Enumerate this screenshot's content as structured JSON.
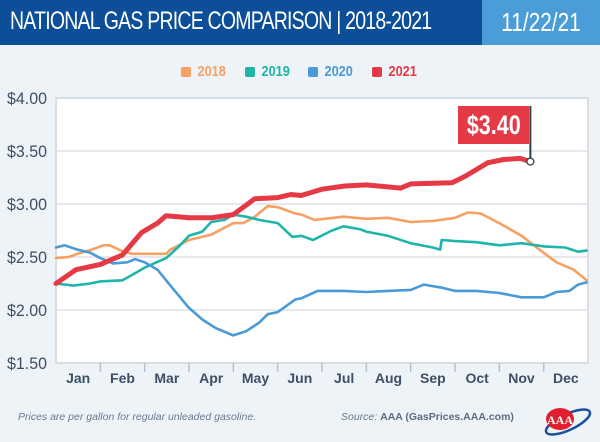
{
  "header": {
    "title": "NATIONAL GAS PRICE COMPARISON | 2018-2021",
    "date": "11/22/21"
  },
  "colors": {
    "header_bg": "#0c4f98",
    "date_bg": "#4b9dd8",
    "2018": "#f7a064",
    "2019": "#1fb5a9",
    "2020": "#4a9ad8",
    "2021": "#e63946"
  },
  "footer": {
    "note": "Prices are per gallon for regular unleaded gasoline.",
    "source_label": "Source:",
    "source_value": "AAA (GasPrices.AAA.com)",
    "logo": "AAA"
  },
  "chart_data": {
    "type": "line",
    "title": "NATIONAL GAS PRICE COMPARISON | 2018-2021",
    "ylim": [
      1.5,
      4.0
    ],
    "yticks": [
      "$1.50",
      "$2.00",
      "$2.50",
      "$3.00",
      "$3.50",
      "$4.00"
    ],
    "ytick_values": [
      1.5,
      2.0,
      2.5,
      3.0,
      3.5,
      4.0
    ],
    "categories": [
      "Jan",
      "Feb",
      "Mar",
      "Apr",
      "May",
      "Jun",
      "Jul",
      "Aug",
      "Sep",
      "Oct",
      "Nov",
      "Dec"
    ],
    "grid": "horizontal",
    "legend_placement": "top-center",
    "annotation": {
      "label": "$3.40",
      "series": "2021",
      "date": "11-22",
      "value": 3.4
    },
    "series": [
      {
        "name": "2018",
        "color": "#f7a064",
        "points": [
          [
            "01-01",
            2.49
          ],
          [
            "01-10",
            2.5
          ],
          [
            "01-16",
            2.53
          ],
          [
            "01-26",
            2.57
          ],
          [
            "02-03",
            2.61
          ],
          [
            "02-07",
            2.61
          ],
          [
            "02-14",
            2.56
          ],
          [
            "02-21",
            2.53
          ],
          [
            "03-01",
            2.53
          ],
          [
            "03-16",
            2.53
          ],
          [
            "03-19",
            2.57
          ],
          [
            "04-01",
            2.66
          ],
          [
            "04-16",
            2.71
          ],
          [
            "05-01",
            2.82
          ],
          [
            "05-08",
            2.82
          ],
          [
            "05-16",
            2.88
          ],
          [
            "05-25",
            2.98
          ],
          [
            "06-01",
            2.97
          ],
          [
            "06-13",
            2.91
          ],
          [
            "06-17",
            2.9
          ],
          [
            "06-26",
            2.85
          ],
          [
            "07-16",
            2.88
          ],
          [
            "08-01",
            2.86
          ],
          [
            "08-16",
            2.87
          ],
          [
            "09-01",
            2.83
          ],
          [
            "09-16",
            2.84
          ],
          [
            "10-01",
            2.87
          ],
          [
            "10-10",
            2.92
          ],
          [
            "10-19",
            2.91
          ],
          [
            "11-01",
            2.82
          ],
          [
            "11-16",
            2.7
          ],
          [
            "12-01",
            2.54
          ],
          [
            "12-10",
            2.45
          ],
          [
            "12-22",
            2.38
          ],
          [
            "12-31",
            2.28
          ]
        ]
      },
      {
        "name": "2019",
        "color": "#1fb5a9",
        "points": [
          [
            "01-01",
            2.25
          ],
          [
            "01-13",
            2.23
          ],
          [
            "01-25",
            2.25
          ],
          [
            "02-01",
            2.27
          ],
          [
            "02-15",
            2.28
          ],
          [
            "02-21",
            2.33
          ],
          [
            "03-01",
            2.4
          ],
          [
            "03-16",
            2.49
          ],
          [
            "03-25",
            2.6
          ],
          [
            "04-01",
            2.7
          ],
          [
            "04-10",
            2.74
          ],
          [
            "04-16",
            2.83
          ],
          [
            "04-25",
            2.85
          ],
          [
            "05-01",
            2.9
          ],
          [
            "05-10",
            2.88
          ],
          [
            "05-19",
            2.85
          ],
          [
            "06-01",
            2.82
          ],
          [
            "06-11",
            2.69
          ],
          [
            "06-17",
            2.7
          ],
          [
            "06-25",
            2.66
          ],
          [
            "07-08",
            2.75
          ],
          [
            "07-16",
            2.79
          ],
          [
            "07-28",
            2.76
          ],
          [
            "08-01",
            2.74
          ],
          [
            "08-16",
            2.7
          ],
          [
            "09-01",
            2.63
          ],
          [
            "09-16",
            2.59
          ],
          [
            "09-21",
            2.57
          ],
          [
            "09-22",
            2.66
          ],
          [
            "10-01",
            2.65
          ],
          [
            "10-16",
            2.64
          ],
          [
            "11-01",
            2.61
          ],
          [
            "11-16",
            2.63
          ],
          [
            "12-01",
            2.6
          ],
          [
            "12-16",
            2.59
          ],
          [
            "12-25",
            2.55
          ],
          [
            "12-31",
            2.56
          ]
        ]
      },
      {
        "name": "2020",
        "color": "#4a9ad8",
        "points": [
          [
            "01-01",
            2.59
          ],
          [
            "01-07",
            2.61
          ],
          [
            "01-16",
            2.57
          ],
          [
            "01-25",
            2.54
          ],
          [
            "02-01",
            2.49
          ],
          [
            "02-09",
            2.44
          ],
          [
            "02-18",
            2.45
          ],
          [
            "02-23",
            2.48
          ],
          [
            "03-01",
            2.45
          ],
          [
            "03-10",
            2.38
          ],
          [
            "03-19",
            2.23
          ],
          [
            "04-01",
            2.02
          ],
          [
            "04-10",
            1.91
          ],
          [
            "04-19",
            1.83
          ],
          [
            "05-01",
            1.76
          ],
          [
            "05-10",
            1.8
          ],
          [
            "05-19",
            1.88
          ],
          [
            "05-25",
            1.96
          ],
          [
            "06-01",
            1.98
          ],
          [
            "06-07",
            2.04
          ],
          [
            "06-13",
            2.1
          ],
          [
            "06-17",
            2.11
          ],
          [
            "06-28",
            2.18
          ],
          [
            "07-16",
            2.18
          ],
          [
            "08-01",
            2.17
          ],
          [
            "08-16",
            2.18
          ],
          [
            "09-01",
            2.19
          ],
          [
            "09-10",
            2.24
          ],
          [
            "09-22",
            2.21
          ],
          [
            "10-01",
            2.18
          ],
          [
            "10-16",
            2.18
          ],
          [
            "11-01",
            2.16
          ],
          [
            "11-16",
            2.12
          ],
          [
            "12-01",
            2.12
          ],
          [
            "12-10",
            2.17
          ],
          [
            "12-19",
            2.18
          ],
          [
            "12-25",
            2.24
          ],
          [
            "12-31",
            2.26
          ]
        ]
      },
      {
        "name": "2021",
        "color": "#e63946",
        "points": [
          [
            "01-01",
            2.25
          ],
          [
            "01-15",
            2.38
          ],
          [
            "02-01",
            2.43
          ],
          [
            "02-15",
            2.52
          ],
          [
            "02-27",
            2.73
          ],
          [
            "03-10",
            2.82
          ],
          [
            "03-16",
            2.89
          ],
          [
            "04-01",
            2.87
          ],
          [
            "04-16",
            2.87
          ],
          [
            "05-01",
            2.9
          ],
          [
            "05-16",
            3.05
          ],
          [
            "06-01",
            3.06
          ],
          [
            "06-10",
            3.09
          ],
          [
            "06-17",
            3.08
          ],
          [
            "07-01",
            3.14
          ],
          [
            "07-17",
            3.17
          ],
          [
            "08-01",
            3.18
          ],
          [
            "08-25",
            3.15
          ],
          [
            "09-01",
            3.19
          ],
          [
            "09-29",
            3.2
          ],
          [
            "10-08",
            3.26
          ],
          [
            "10-24",
            3.39
          ],
          [
            "11-04",
            3.42
          ],
          [
            "11-15",
            3.43
          ],
          [
            "11-22",
            3.4
          ]
        ]
      }
    ]
  }
}
